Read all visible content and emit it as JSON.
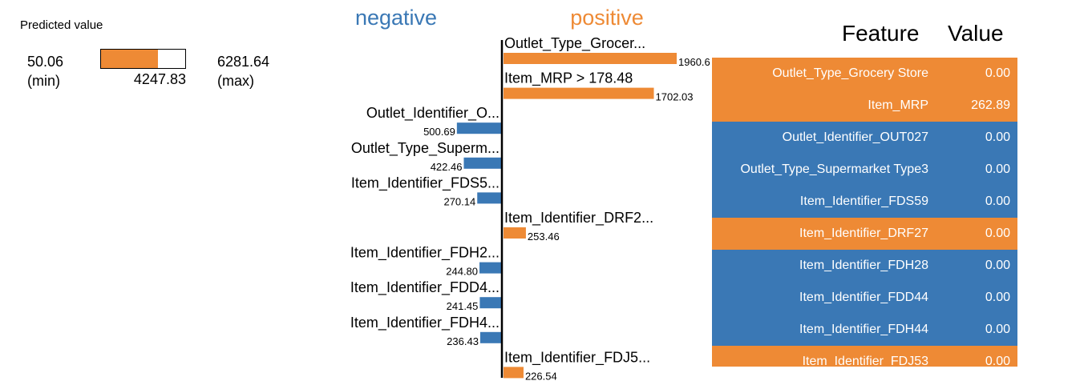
{
  "colors": {
    "negative": "#3a78b5",
    "positive": "#ee8a35"
  },
  "prediction": {
    "title": "Predicted value",
    "min_value": "50.06",
    "min_label": "(min)",
    "max_value": "6281.64",
    "max_label": "(max)",
    "value": "4247.83",
    "fraction": 0.673
  },
  "chart_data": {
    "type": "bar",
    "orientation": "horizontal",
    "legend": {
      "negative": "negative",
      "positive": "positive"
    },
    "bars": [
      {
        "label": "Outlet_Type_Grocer...",
        "value": 1960.6,
        "value_label": "1960.6",
        "sign": "positive"
      },
      {
        "label": "Item_MRP > 178.48",
        "value": 1702.03,
        "value_label": "1702.03",
        "sign": "positive"
      },
      {
        "label": "Outlet_Identifier_O...",
        "value": 500.69,
        "value_label": "500.69",
        "sign": "negative"
      },
      {
        "label": "Outlet_Type_Superm...",
        "value": 422.46,
        "value_label": "422.46",
        "sign": "negative"
      },
      {
        "label": "Item_Identifier_FDS5...",
        "value": 270.14,
        "value_label": "270.14",
        "sign": "negative"
      },
      {
        "label": "Item_Identifier_DRF2...",
        "value": 253.46,
        "value_label": "253.46",
        "sign": "positive"
      },
      {
        "label": "Item_Identifier_FDH2...",
        "value": 244.8,
        "value_label": "244.80",
        "sign": "negative"
      },
      {
        "label": "Item_Identifier_FDD4...",
        "value": 241.45,
        "value_label": "241.45",
        "sign": "negative"
      },
      {
        "label": "Item_Identifier_FDH4...",
        "value": 236.43,
        "value_label": "236.43",
        "sign": "negative"
      },
      {
        "label": "Item_Identifier_FDJ5...",
        "value": 226.54,
        "value_label": "226.54",
        "sign": "positive"
      }
    ]
  },
  "table": {
    "header_feature": "Feature",
    "header_value": "Value",
    "rows": [
      {
        "feature": "Outlet_Type_Grocery Store",
        "value": "0.00",
        "sign": "positive"
      },
      {
        "feature": "Item_MRP",
        "value": "262.89",
        "sign": "positive"
      },
      {
        "feature": "Outlet_Identifier_OUT027",
        "value": "0.00",
        "sign": "negative"
      },
      {
        "feature": "Outlet_Type_Supermarket Type3",
        "value": "0.00",
        "sign": "negative"
      },
      {
        "feature": "Item_Identifier_FDS59",
        "value": "0.00",
        "sign": "negative"
      },
      {
        "feature": "Item_Identifier_DRF27",
        "value": "0.00",
        "sign": "positive"
      },
      {
        "feature": "Item_Identifier_FDH28",
        "value": "0.00",
        "sign": "negative"
      },
      {
        "feature": "Item_Identifier_FDD44",
        "value": "0.00",
        "sign": "negative"
      },
      {
        "feature": "Item_Identifier_FDH44",
        "value": "0.00",
        "sign": "negative"
      },
      {
        "feature": "Item_Identifier_FDJ53",
        "value": "0.00",
        "sign": "positive"
      }
    ]
  }
}
